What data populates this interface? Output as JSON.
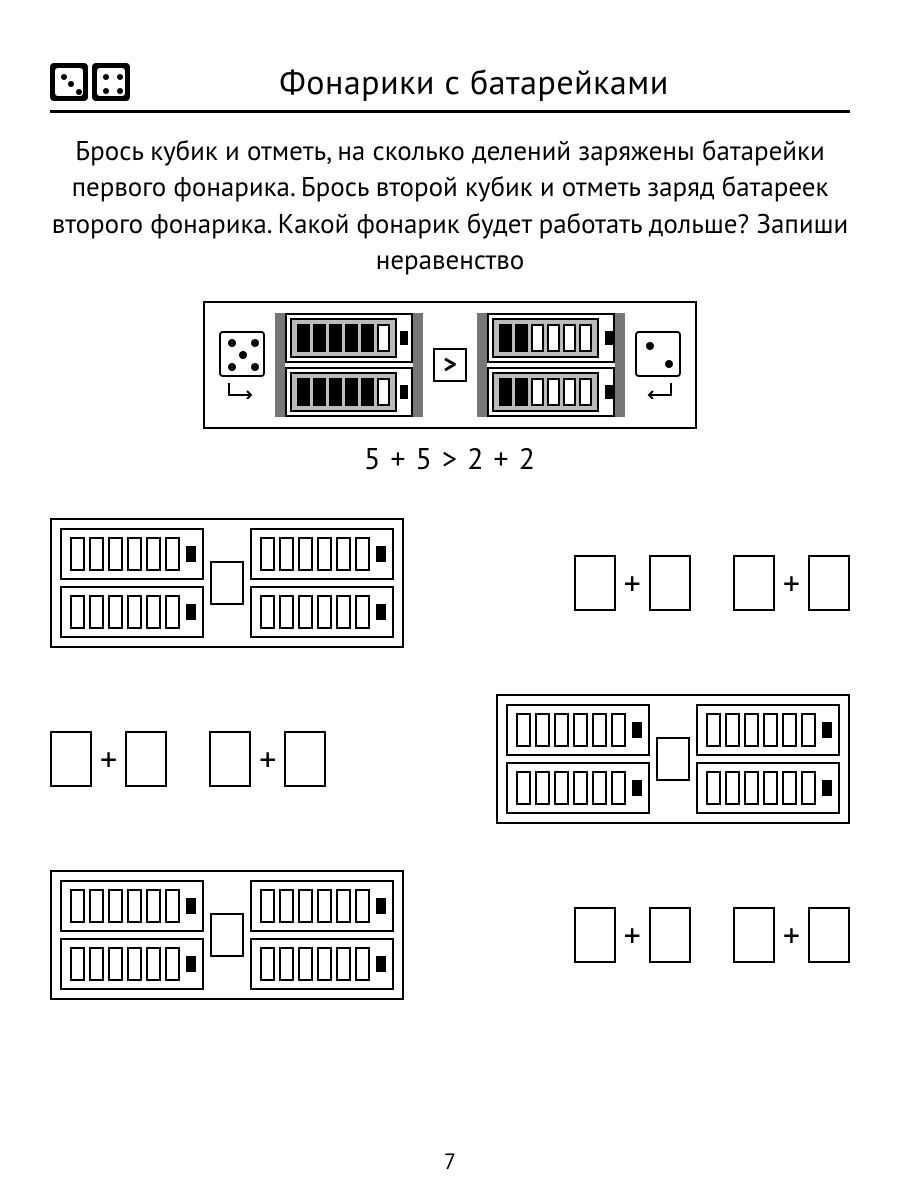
{
  "header": {
    "title": "Фонарики с батарейками",
    "die1_pips": [
      [
        20,
        20
      ],
      [
        50,
        50
      ],
      [
        80,
        80
      ]
    ],
    "die2_pips": [
      [
        25,
        25
      ],
      [
        25,
        75
      ],
      [
        75,
        25
      ],
      [
        75,
        75
      ]
    ]
  },
  "instructions": "Брось кубик и отметь, на сколько делений заряжены батарейки первого фонарика. Брось второй кубик и отметь заряд батареек второго фонарика. Какой фонарик будет работать дольше? Запиши неравенство",
  "example": {
    "left_die_pips": [
      [
        22,
        22
      ],
      [
        78,
        22
      ],
      [
        50,
        50
      ],
      [
        22,
        78
      ],
      [
        78,
        78
      ]
    ],
    "right_die_pips": [
      [
        28,
        28
      ],
      [
        72,
        72
      ]
    ],
    "left_fill": 5,
    "right_fill": 2,
    "cells_per_battery": 6,
    "comparator": ">",
    "equation": "5 + 5 > 2 + 2"
  },
  "exercise": {
    "cells_per_battery": 6,
    "plus": "+",
    "rows": [
      {
        "layout": "fl-left"
      },
      {
        "layout": "fl-right"
      },
      {
        "layout": "fl-left"
      }
    ]
  },
  "page_number": "7",
  "colors": {
    "stroke": "#000000",
    "grey": "#777777",
    "fill_bg": "#ffffff"
  }
}
